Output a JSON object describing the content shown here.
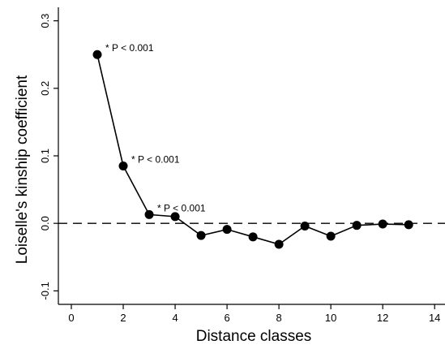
{
  "chart_data": {
    "type": "line",
    "xlabel": "Distance classes",
    "ylabel": "Loiselle's kinship coefficient",
    "xlim": [
      -0.5,
      14.4
    ],
    "ylim": [
      -0.12,
      0.32
    ],
    "xticks": [
      0,
      2,
      4,
      6,
      8,
      10,
      12,
      14
    ],
    "xtick_labels": [
      "0",
      "2",
      "4",
      "6",
      "8",
      "10",
      "12",
      "14"
    ],
    "yticks": [
      -0.1,
      0.0,
      0.1,
      0.2,
      0.3
    ],
    "ytick_labels": [
      "-0.1",
      "0.0",
      "0.1",
      "0.2",
      "0.3"
    ],
    "reference_line": {
      "y": 0.0,
      "style": "dashed"
    },
    "grid": false,
    "legend": "none",
    "series": [
      {
        "x": [
          1,
          2,
          3,
          4,
          5,
          6,
          7,
          8,
          9,
          10,
          11,
          12,
          13
        ],
        "y": [
          0.25,
          0.085,
          0.013,
          0.01,
          -0.018,
          -0.009,
          -0.02,
          -0.031,
          -0.004,
          -0.019,
          -0.003,
          -0.001,
          -0.002
        ]
      }
    ],
    "annotations": [
      {
        "x": 1,
        "y": 0.25,
        "text": "* P < 0.001"
      },
      {
        "x": 2,
        "y": 0.085,
        "text": "* P < 0.001"
      },
      {
        "x": 3,
        "y": 0.013,
        "text": "* P < 0.001"
      }
    ]
  }
}
